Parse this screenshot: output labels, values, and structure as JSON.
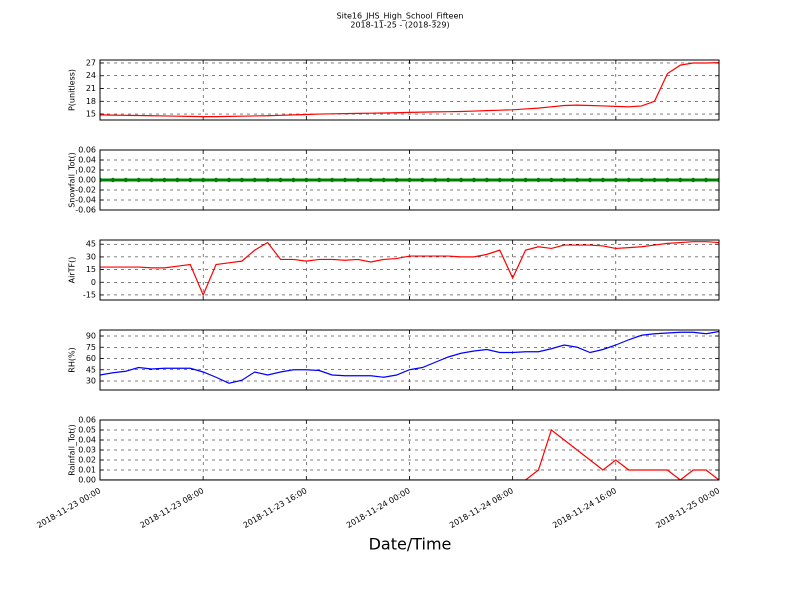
{
  "title": "Site16_JHS_High_School_Fifteen",
  "subtitle": "2018-11-25 - (2018-329)",
  "xlabel": "Date/Time",
  "chart_data": [
    {
      "type": "line",
      "ylabel": "P(unitless)",
      "grid": true,
      "x": [
        "2018-11-23 00:00",
        "2018-11-23 01:00",
        "2018-11-23 02:00",
        "2018-11-23 03:00",
        "2018-11-23 04:00",
        "2018-11-23 05:00",
        "2018-11-23 06:00",
        "2018-11-23 07:00",
        "2018-11-23 08:00",
        "2018-11-23 09:00",
        "2018-11-23 10:00",
        "2018-11-23 11:00",
        "2018-11-23 12:00",
        "2018-11-23 13:00",
        "2018-11-23 14:00",
        "2018-11-23 15:00",
        "2018-11-23 16:00",
        "2018-11-23 17:00",
        "2018-11-23 18:00",
        "2018-11-23 19:00",
        "2018-11-23 20:00",
        "2018-11-23 21:00",
        "2018-11-23 22:00",
        "2018-11-23 23:00",
        "2018-11-24 00:00",
        "2018-11-24 01:00",
        "2018-11-24 02:00",
        "2018-11-24 03:00",
        "2018-11-24 04:00",
        "2018-11-24 05:00",
        "2018-11-24 06:00",
        "2018-11-24 07:00",
        "2018-11-24 08:00",
        "2018-11-24 09:00",
        "2018-11-24 10:00",
        "2018-11-24 11:00",
        "2018-11-24 12:00",
        "2018-11-24 13:00",
        "2018-11-24 14:00",
        "2018-11-24 15:00",
        "2018-11-24 16:00",
        "2018-11-24 17:00",
        "2018-11-24 18:00",
        "2018-11-24 19:00",
        "2018-11-24 20:00",
        "2018-11-24 21:00",
        "2018-11-24 22:00",
        "2018-11-24 23:00",
        "2018-11-25 00:00"
      ],
      "series": [
        {
          "name": "P(unitless)",
          "color": "#ff0000",
          "values": [
            14.8,
            14.75,
            14.7,
            14.65,
            14.6,
            14.55,
            14.5,
            14.45,
            14.4,
            14.4,
            14.45,
            14.5,
            14.55,
            14.6,
            14.7,
            14.8,
            14.9,
            15.0,
            15.05,
            15.1,
            15.15,
            15.2,
            15.25,
            15.3,
            15.4,
            15.45,
            15.5,
            15.55,
            15.6,
            15.7,
            15.8,
            15.9,
            16.0,
            16.2,
            16.4,
            16.7,
            17.0,
            17.1,
            17.0,
            16.9,
            16.8,
            16.7,
            16.9,
            18.0,
            24.5,
            26.5,
            27.0,
            27.0,
            27.1
          ]
        }
      ],
      "xlim": [
        "2018-11-23 00:00",
        "2018-11-25 00:00"
      ],
      "xticks": [
        "2018-11-23 00:00",
        "2018-11-23 08:00",
        "2018-11-23 16:00",
        "2018-11-24 00:00",
        "2018-11-24 08:00",
        "2018-11-24 16:00",
        "2018-11-25 00:00"
      ],
      "ylim": [
        13.6,
        27.7
      ],
      "yticks": [
        15,
        18,
        21,
        24,
        27
      ]
    },
    {
      "type": "line",
      "ylabel": "Snowfall_Tot()",
      "grid": true,
      "markers": true,
      "x": [
        "2018-11-23 00:00",
        "2018-11-23 01:00",
        "2018-11-23 02:00",
        "2018-11-23 03:00",
        "2018-11-23 04:00",
        "2018-11-23 05:00",
        "2018-11-23 06:00",
        "2018-11-23 07:00",
        "2018-11-23 08:00",
        "2018-11-23 09:00",
        "2018-11-23 10:00",
        "2018-11-23 11:00",
        "2018-11-23 12:00",
        "2018-11-23 13:00",
        "2018-11-23 14:00",
        "2018-11-23 15:00",
        "2018-11-23 16:00",
        "2018-11-23 17:00",
        "2018-11-23 18:00",
        "2018-11-23 19:00",
        "2018-11-23 20:00",
        "2018-11-23 21:00",
        "2018-11-23 22:00",
        "2018-11-23 23:00",
        "2018-11-24 00:00",
        "2018-11-24 01:00",
        "2018-11-24 02:00",
        "2018-11-24 03:00",
        "2018-11-24 04:00",
        "2018-11-24 05:00",
        "2018-11-24 06:00",
        "2018-11-24 07:00",
        "2018-11-24 08:00",
        "2018-11-24 09:00",
        "2018-11-24 10:00",
        "2018-11-24 11:00",
        "2018-11-24 12:00",
        "2018-11-24 13:00",
        "2018-11-24 14:00",
        "2018-11-24 15:00",
        "2018-11-24 16:00",
        "2018-11-24 17:00",
        "2018-11-24 18:00",
        "2018-11-24 19:00",
        "2018-11-24 20:00",
        "2018-11-24 21:00",
        "2018-11-24 22:00",
        "2018-11-24 23:00",
        "2018-11-25 00:00"
      ],
      "series": [
        {
          "name": "Snowfall_Tot()",
          "color": "#008000",
          "values": [
            0,
            0,
            0,
            0,
            0,
            0,
            0,
            0,
            0,
            0,
            0,
            0,
            0,
            0,
            0,
            0,
            0,
            0,
            0,
            0,
            0,
            0,
            0,
            0,
            0,
            0,
            0,
            0,
            0,
            0,
            0,
            0,
            0,
            0,
            0,
            0,
            0,
            0,
            0,
            0,
            0,
            0,
            0,
            0,
            0,
            0,
            0,
            0,
            0
          ]
        }
      ],
      "xlim": [
        "2018-11-23 00:00",
        "2018-11-25 00:00"
      ],
      "xticks": [
        "2018-11-23 00:00",
        "2018-11-23 08:00",
        "2018-11-23 16:00",
        "2018-11-24 00:00",
        "2018-11-24 08:00",
        "2018-11-24 16:00",
        "2018-11-25 00:00"
      ],
      "ylim": [
        -0.06,
        0.06
      ],
      "yticks": [
        -0.06,
        -0.04,
        -0.02,
        {
          "value": 0,
          "label": "0.00"
        },
        0.02,
        0.04,
        0.06
      ]
    },
    {
      "type": "line",
      "ylabel": "AirTF()",
      "grid": true,
      "x": [
        "2018-11-23 00:00",
        "2018-11-23 01:00",
        "2018-11-23 02:00",
        "2018-11-23 03:00",
        "2018-11-23 04:00",
        "2018-11-23 05:00",
        "2018-11-23 06:00",
        "2018-11-23 07:00",
        "2018-11-23 08:00",
        "2018-11-23 09:00",
        "2018-11-23 10:00",
        "2018-11-23 11:00",
        "2018-11-23 12:00",
        "2018-11-23 13:00",
        "2018-11-23 14:00",
        "2018-11-23 15:00",
        "2018-11-23 16:00",
        "2018-11-23 17:00",
        "2018-11-23 18:00",
        "2018-11-23 19:00",
        "2018-11-23 20:00",
        "2018-11-23 21:00",
        "2018-11-23 22:00",
        "2018-11-23 23:00",
        "2018-11-24 00:00",
        "2018-11-24 01:00",
        "2018-11-24 02:00",
        "2018-11-24 03:00",
        "2018-11-24 04:00",
        "2018-11-24 05:00",
        "2018-11-24 06:00",
        "2018-11-24 07:00",
        "2018-11-24 08:00",
        "2018-11-24 09:00",
        "2018-11-24 10:00",
        "2018-11-24 11:00",
        "2018-11-24 12:00",
        "2018-11-24 13:00",
        "2018-11-24 14:00",
        "2018-11-24 15:00",
        "2018-11-24 16:00",
        "2018-11-24 17:00",
        "2018-11-24 18:00",
        "2018-11-24 19:00",
        "2018-11-24 20:00",
        "2018-11-24 21:00",
        "2018-11-24 22:00",
        "2018-11-24 23:00",
        "2018-11-25 00:00"
      ],
      "series": [
        {
          "name": "AirTF()",
          "color": "#ff0000",
          "values": [
            18,
            18,
            18,
            18,
            17,
            17,
            19,
            21,
            -15,
            21,
            23,
            25,
            38,
            47,
            27,
            27,
            25,
            27,
            27,
            26,
            27,
            24,
            27,
            28,
            31,
            31,
            31,
            31,
            30,
            30,
            33,
            38,
            5,
            38,
            42,
            40,
            44,
            44,
            44,
            43,
            40,
            41,
            42,
            44,
            46,
            47,
            48,
            48,
            47
          ]
        }
      ],
      "xlim": [
        "2018-11-23 00:00",
        "2018-11-25 00:00"
      ],
      "xticks": [
        "2018-11-23 00:00",
        "2018-11-23 08:00",
        "2018-11-23 16:00",
        "2018-11-24 00:00",
        "2018-11-24 08:00",
        "2018-11-24 16:00",
        "2018-11-25 00:00"
      ],
      "ylim": [
        -21,
        50
      ],
      "yticks": [
        -15,
        0,
        15,
        30,
        45
      ]
    },
    {
      "type": "line",
      "ylabel": "RH(%)",
      "grid": true,
      "x": [
        "2018-11-23 00:00",
        "2018-11-23 01:00",
        "2018-11-23 02:00",
        "2018-11-23 03:00",
        "2018-11-23 04:00",
        "2018-11-23 05:00",
        "2018-11-23 06:00",
        "2018-11-23 07:00",
        "2018-11-23 08:00",
        "2018-11-23 09:00",
        "2018-11-23 10:00",
        "2018-11-23 11:00",
        "2018-11-23 12:00",
        "2018-11-23 13:00",
        "2018-11-23 14:00",
        "2018-11-23 15:00",
        "2018-11-23 16:00",
        "2018-11-23 17:00",
        "2018-11-23 18:00",
        "2018-11-23 19:00",
        "2018-11-23 20:00",
        "2018-11-23 21:00",
        "2018-11-23 22:00",
        "2018-11-23 23:00",
        "2018-11-24 00:00",
        "2018-11-24 01:00",
        "2018-11-24 02:00",
        "2018-11-24 03:00",
        "2018-11-24 04:00",
        "2018-11-24 05:00",
        "2018-11-24 06:00",
        "2018-11-24 07:00",
        "2018-11-24 08:00",
        "2018-11-24 09:00",
        "2018-11-24 10:00",
        "2018-11-24 11:00",
        "2018-11-24 12:00",
        "2018-11-24 13:00",
        "2018-11-24 14:00",
        "2018-11-24 15:00",
        "2018-11-24 16:00",
        "2018-11-24 17:00",
        "2018-11-24 18:00",
        "2018-11-24 19:00",
        "2018-11-24 20:00",
        "2018-11-24 21:00",
        "2018-11-24 22:00",
        "2018-11-24 23:00",
        "2018-11-25 00:00"
      ],
      "series": [
        {
          "name": "RH(%)",
          "color": "#0000ff",
          "values": [
            38,
            41,
            43,
            48,
            46,
            47,
            47,
            47,
            42,
            35,
            27,
            31,
            42,
            38,
            42,
            45,
            45,
            44,
            38,
            37,
            37,
            37,
            35,
            38,
            45,
            48,
            55,
            62,
            67,
            70,
            72,
            68,
            68,
            69,
            69,
            73,
            78,
            75,
            68,
            72,
            78,
            85,
            91,
            93,
            94,
            95,
            95,
            93,
            96
          ]
        }
      ],
      "xlim": [
        "2018-11-23 00:00",
        "2018-11-25 00:00"
      ],
      "xticks": [
        "2018-11-23 00:00",
        "2018-11-23 08:00",
        "2018-11-23 16:00",
        "2018-11-24 00:00",
        "2018-11-24 08:00",
        "2018-11-24 16:00",
        "2018-11-25 00:00"
      ],
      "ylim": [
        18,
        98
      ],
      "yticks": [
        30,
        45,
        60,
        75,
        90
      ]
    },
    {
      "type": "line",
      "ylabel": "Rainfall_Tot()",
      "grid": true,
      "x": [
        "2018-11-23 00:00",
        "2018-11-23 01:00",
        "2018-11-23 02:00",
        "2018-11-23 03:00",
        "2018-11-23 04:00",
        "2018-11-23 05:00",
        "2018-11-23 06:00",
        "2018-11-23 07:00",
        "2018-11-23 08:00",
        "2018-11-23 09:00",
        "2018-11-23 10:00",
        "2018-11-23 11:00",
        "2018-11-23 12:00",
        "2018-11-23 13:00",
        "2018-11-23 14:00",
        "2018-11-23 15:00",
        "2018-11-23 16:00",
        "2018-11-23 17:00",
        "2018-11-23 18:00",
        "2018-11-23 19:00",
        "2018-11-23 20:00",
        "2018-11-23 21:00",
        "2018-11-23 22:00",
        "2018-11-23 23:00",
        "2018-11-24 00:00",
        "2018-11-24 01:00",
        "2018-11-24 02:00",
        "2018-11-24 03:00",
        "2018-11-24 04:00",
        "2018-11-24 05:00",
        "2018-11-24 06:00",
        "2018-11-24 07:00",
        "2018-11-24 08:00",
        "2018-11-24 09:00",
        "2018-11-24 10:00",
        "2018-11-24 11:00",
        "2018-11-24 12:00",
        "2018-11-24 13:00",
        "2018-11-24 14:00",
        "2018-11-24 15:00",
        "2018-11-24 16:00",
        "2018-11-24 17:00",
        "2018-11-24 18:00",
        "2018-11-24 19:00",
        "2018-11-24 20:00",
        "2018-11-24 21:00",
        "2018-11-24 22:00",
        "2018-11-24 23:00",
        "2018-11-25 00:00"
      ],
      "series": [
        {
          "name": "Rainfall_Tot()",
          "color": "#ff0000",
          "values": [
            0,
            0,
            0,
            0,
            0,
            0,
            0,
            0,
            0,
            0,
            0,
            0,
            0,
            0,
            0,
            0,
            0,
            0,
            0,
            0,
            0,
            0,
            0,
            0,
            0,
            0,
            0,
            0,
            0,
            0,
            0,
            0,
            0,
            0,
            0.01,
            0.05,
            0.04,
            0.03,
            0.02,
            0.01,
            0.02,
            0.01,
            0.01,
            0.01,
            0.01,
            0,
            0.01,
            0.01,
            0
          ]
        }
      ],
      "xlim": [
        "2018-11-23 00:00",
        "2018-11-25 00:00"
      ],
      "xticks": [
        "2018-11-23 00:00",
        "2018-11-23 08:00",
        "2018-11-23 16:00",
        "2018-11-24 00:00",
        "2018-11-24 08:00",
        "2018-11-24 16:00",
        "2018-11-25 00:00"
      ],
      "ylim": [
        0,
        0.06
      ],
      "yticks": [
        {
          "value": 0,
          "label": "0.00"
        },
        0.01,
        0.02,
        0.03,
        0.04,
        0.05,
        0.06
      ]
    }
  ]
}
